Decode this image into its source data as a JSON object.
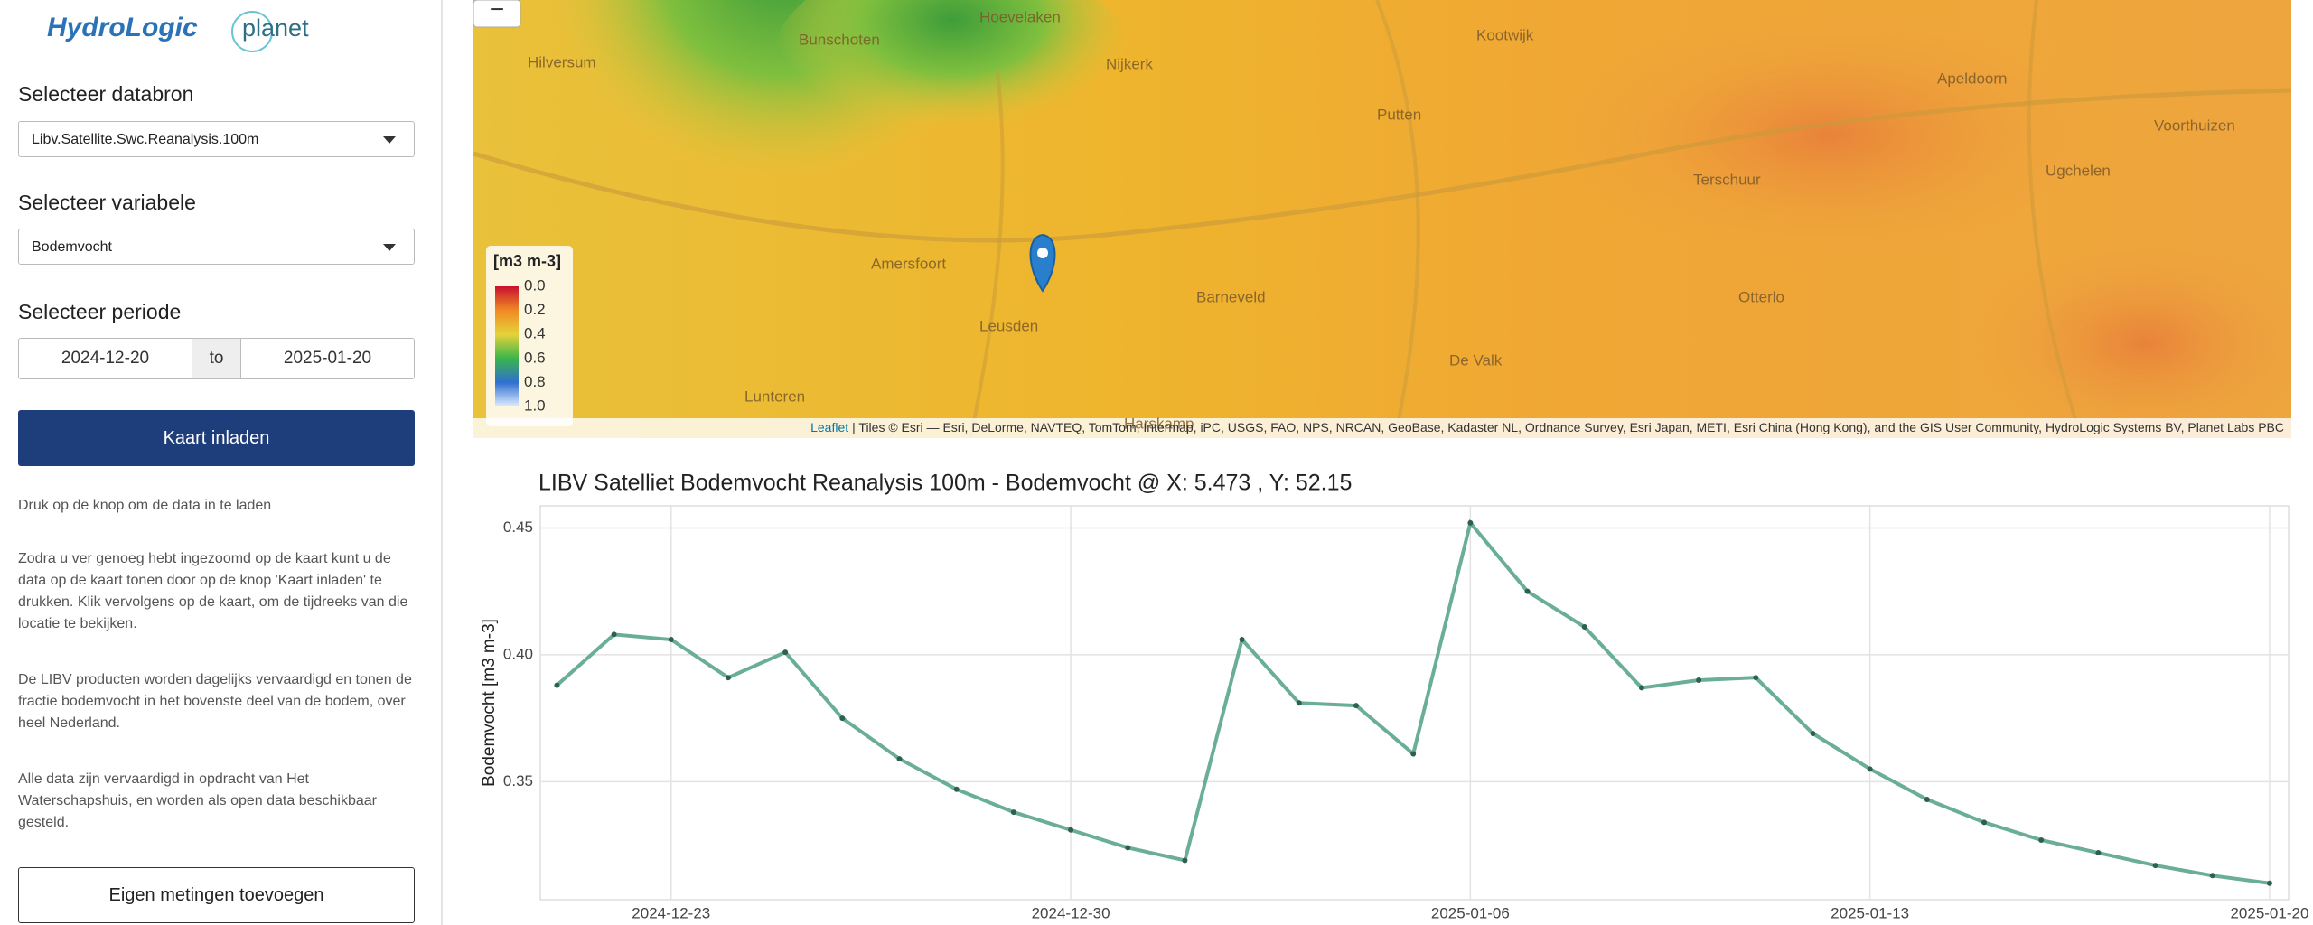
{
  "sidebar": {
    "logo_hydrologic": "HydroLogic",
    "logo_planet": "planet",
    "databron_label": "Selecteer databron",
    "databron_value": "Libv.Satellite.Swc.Reanalysis.100m",
    "variabele_label": "Selecteer variabele",
    "variabele_value": "Bodemvocht",
    "periode_label": "Selecteer periode",
    "start_date": "2024-12-20",
    "to": "to",
    "end_date": "2025-01-20",
    "load_button": "Kaart inladen",
    "hint": "Druk op de knop om de data in te laden",
    "paragraphs": [
      "Zodra u ver genoeg hebt ingezoomd op de kaart kunt u de data op de kaart tonen door op de knop 'Kaart inladen' te drukken. Klik vervolgens op de kaart, om de tijdreeks van die locatie te bekijken.",
      "De LIBV producten worden dagelijks vervaardigd en tonen de fractie bodemvocht in het bovenste deel van de bodem, over heel Nederland.",
      "Alle data zijn vervaardigd in opdracht van Het Waterschapshuis, en worden als open data beschikbaar gesteld."
    ],
    "add_button": "Eigen metingen toevoegen"
  },
  "map": {
    "zoom_out": "−",
    "places": [
      "Hilversum",
      "Nijkerk",
      "Bunschoten",
      "Amersfoort",
      "Leusden",
      "Barneveld",
      "De Valk",
      "Apeldoorn",
      "Voorthuizen",
      "Putten",
      "Kootwijk",
      "Lunteren",
      "Hoevelaken",
      "Terschuur",
      "Harskamp",
      "Otterlo",
      "Ugchelen"
    ],
    "legend_title": "[m3 m-3]",
    "legend_labels": [
      "0.0",
      "0.2",
      "0.4",
      "0.6",
      "0.8",
      "1.0"
    ],
    "attribution_link": "Leaflet",
    "attribution": "| Tiles © Esri — Esri, DeLorme, NAVTEQ, TomTom, Intermap, iPC, USGS, FAO, NPS, NRCAN, GeoBase, Kadaster NL, Ordnance Survey, Esri Japan, METI, Esri China (Hong Kong), and the GIS User Community, HydroLogic Systems BV, Planet Labs PBC"
  },
  "chart_data": {
    "type": "line",
    "title": "LIBV Satelliet Bodemvocht Reanalysis 100m - Bodemvocht @ X: 5.473 , Y: 52.15",
    "y_label": "Bodemvocht [m3 m-3]",
    "x": [
      "2024-12-21",
      "2024-12-22",
      "2024-12-23",
      "2024-12-24",
      "2024-12-25",
      "2024-12-26",
      "2024-12-27",
      "2024-12-28",
      "2024-12-29",
      "2024-12-30",
      "2024-12-31",
      "2025-01-01",
      "2025-01-02",
      "2025-01-03",
      "2025-01-04",
      "2025-01-05",
      "2025-01-06",
      "2025-01-07",
      "2025-01-08",
      "2025-01-09",
      "2025-01-10",
      "2025-01-11",
      "2025-01-12",
      "2025-01-13",
      "2025-01-14",
      "2025-01-15",
      "2025-01-16",
      "2025-01-17",
      "2025-01-18",
      "2025-01-19",
      "2025-01-20"
    ],
    "values": [
      0.388,
      0.408,
      0.406,
      0.391,
      0.401,
      0.375,
      0.359,
      0.347,
      0.338,
      0.331,
      0.324,
      0.319,
      0.406,
      0.381,
      0.38,
      0.361,
      0.452,
      0.425,
      0.411,
      0.387,
      0.39,
      0.391,
      0.369,
      0.355,
      0.343,
      0.334,
      0.327,
      0.322,
      0.317,
      0.313,
      0.31
    ],
    "color": "#6aae96",
    "xlim": [
      "2024-12-20T17:00",
      "2025-01-20T08:00"
    ],
    "xticks": [
      "2024-12-23",
      "2024-12-30",
      "2025-01-06",
      "2025-01-13",
      "2025-01-20"
    ],
    "ylim": [
      0.3035,
      0.4587
    ],
    "yticks": [
      0.35,
      {
        "value": 0.4,
        "label": "0.40"
      },
      0.45
    ],
    "grid": true
  }
}
